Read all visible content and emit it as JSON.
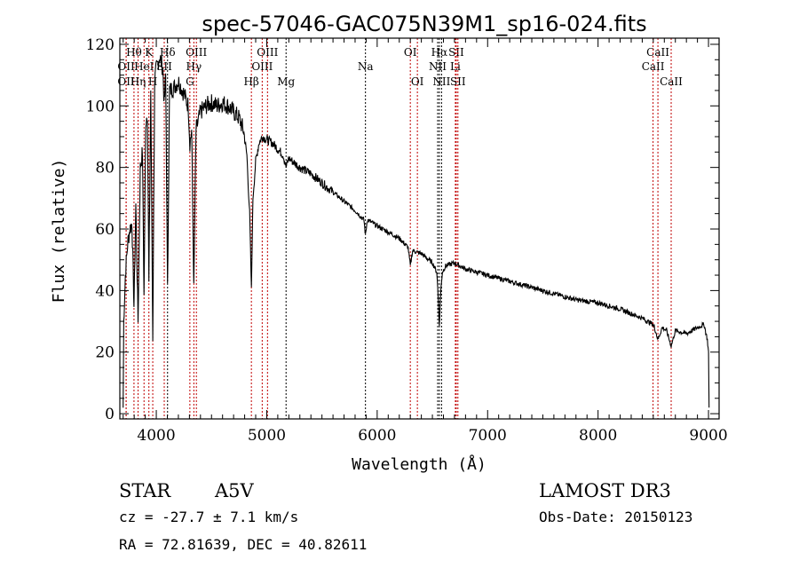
{
  "chart_data": {
    "type": "line",
    "title": "spec-57046-GAC075N39M1_sp16-024.fits",
    "xlabel": "Wavelength (Å)",
    "ylabel": "Flux (relative)",
    "xlim": [
      3670,
      9096
    ],
    "ylim": [
      -1.7,
      122
    ],
    "xticks": [
      4000,
      5000,
      6000,
      7000,
      8000,
      9000
    ],
    "yticks": [
      0,
      20,
      40,
      60,
      80,
      100,
      120
    ],
    "grid": false,
    "series": [
      {
        "name": "spectrum",
        "color": "#000000",
        "points": [
          [
            3700,
            2
          ],
          [
            3705,
            30
          ],
          [
            3720,
            45
          ],
          [
            3740,
            55
          ],
          [
            3760,
            60
          ],
          [
            3780,
            62
          ],
          [
            3798,
            35
          ],
          [
            3815,
            68
          ],
          [
            3835,
            30
          ],
          [
            3855,
            80
          ],
          [
            3875,
            85
          ],
          [
            3889,
            38
          ],
          [
            3905,
            95
          ],
          [
            3920,
            98
          ],
          [
            3933,
            42
          ],
          [
            3950,
            105
          ],
          [
            3968,
            25
          ],
          [
            3985,
            108
          ],
          [
            4000,
            112
          ],
          [
            4030,
            116
          ],
          [
            4060,
            112
          ],
          [
            4072,
            100
          ],
          [
            4085,
            110
          ],
          [
            4102,
            40
          ],
          [
            4120,
            105
          ],
          [
            4160,
            106
          ],
          [
            4200,
            108
          ],
          [
            4250,
            104
          ],
          [
            4290,
            100
          ],
          [
            4304,
            88
          ],
          [
            4320,
            92
          ],
          [
            4340,
            40
          ],
          [
            4360,
            92
          ],
          [
            4400,
            98
          ],
          [
            4450,
            100
          ],
          [
            4500,
            101
          ],
          [
            4550,
            100
          ],
          [
            4600,
            101
          ],
          [
            4650,
            100
          ],
          [
            4700,
            98
          ],
          [
            4750,
            96
          ],
          [
            4790,
            92
          ],
          [
            4820,
            84
          ],
          [
            4845,
            65
          ],
          [
            4861,
            40
          ],
          [
            4875,
            70
          ],
          [
            4900,
            82
          ],
          [
            4930,
            88
          ],
          [
            4960,
            90
          ],
          [
            5000,
            89
          ],
          [
            5050,
            88
          ],
          [
            5100,
            86
          ],
          [
            5150,
            84
          ],
          [
            5175,
            80
          ],
          [
            5200,
            83
          ],
          [
            5300,
            80
          ],
          [
            5400,
            78
          ],
          [
            5500,
            75
          ],
          [
            5600,
            72
          ],
          [
            5700,
            69
          ],
          [
            5800,
            66
          ],
          [
            5880,
            63
          ],
          [
            5894,
            58
          ],
          [
            5910,
            63
          ],
          [
            6000,
            61
          ],
          [
            6100,
            59
          ],
          [
            6200,
            57
          ],
          [
            6280,
            54
          ],
          [
            6300,
            48
          ],
          [
            6320,
            53
          ],
          [
            6400,
            52
          ],
          [
            6500,
            49
          ],
          [
            6540,
            46
          ],
          [
            6555,
            36
          ],
          [
            6563,
            28
          ],
          [
            6572,
            38
          ],
          [
            6590,
            46
          ],
          [
            6620,
            48
          ],
          [
            6700,
            49
          ],
          [
            6800,
            47
          ],
          [
            6900,
            46
          ],
          [
            7000,
            45
          ],
          [
            7200,
            43
          ],
          [
            7400,
            41
          ],
          [
            7600,
            39
          ],
          [
            7800,
            37
          ],
          [
            8000,
            36
          ],
          [
            8200,
            34
          ],
          [
            8400,
            31
          ],
          [
            8498,
            29
          ],
          [
            8520,
            27
          ],
          [
            8542,
            24
          ],
          [
            8580,
            28
          ],
          [
            8620,
            27
          ],
          [
            8662,
            22
          ],
          [
            8700,
            27
          ],
          [
            8800,
            26
          ],
          [
            8900,
            28
          ],
          [
            8960,
            29
          ],
          [
            8990,
            24
          ],
          [
            9000,
            20
          ],
          [
            9005,
            2
          ]
        ]
      }
    ],
    "lines": [
      {
        "label": "Hθ",
        "w": 3798,
        "row": 0,
        "color": "#c00000"
      },
      {
        "label": "K",
        "w": 3933,
        "row": 0,
        "color": "#c00000"
      },
      {
        "label": "Hδ",
        "w": 4102,
        "row": 0,
        "color": "#000000"
      },
      {
        "label": "OIII",
        "w": 4363,
        "row": 0,
        "color": "#c00000"
      },
      {
        "label": "OIII",
        "w": 5007,
        "row": 0,
        "color": "#c00000"
      },
      {
        "label": "OI",
        "w": 6300,
        "row": 0,
        "color": "#c00000"
      },
      {
        "label": "Hα",
        "w": 6563,
        "row": 0,
        "color": "#000000"
      },
      {
        "label": "SII",
        "w": 6716,
        "row": 0,
        "color": "#c00000"
      },
      {
        "label": "CaII",
        "w": 8542,
        "row": 0,
        "color": "#c00000"
      },
      {
        "label": "OII",
        "w": 3727,
        "row": 1,
        "color": "#c00000"
      },
      {
        "label": "HeI",
        "w": 3889,
        "row": 1,
        "color": "#c00000"
      },
      {
        "label": "SII",
        "w": 4072,
        "row": 1,
        "color": "#c00000"
      },
      {
        "label": "Hγ",
        "w": 4340,
        "row": 1,
        "color": "#c00000"
      },
      {
        "label": "OIII",
        "w": 4959,
        "row": 1,
        "color": "#c00000"
      },
      {
        "label": "Na",
        "w": 5894,
        "row": 1,
        "color": "#000000"
      },
      {
        "label": "NII",
        "w": 6548,
        "row": 1,
        "color": "#000000"
      },
      {
        "label": "Li",
        "w": 6708,
        "row": 1,
        "color": "#c00000"
      },
      {
        "label": "CaII",
        "w": 8498,
        "row": 1,
        "color": "#c00000"
      },
      {
        "label": "OII",
        "w": 3727,
        "row": 2,
        "color": "#c00000"
      },
      {
        "label": "Hη",
        "w": 3835,
        "row": 2,
        "color": "#c00000"
      },
      {
        "label": "H",
        "w": 3968,
        "row": 2,
        "color": "#c00000"
      },
      {
        "label": "G",
        "w": 4304,
        "row": 2,
        "color": "#c00000"
      },
      {
        "label": "Hβ",
        "w": 4861,
        "row": 2,
        "color": "#c00000"
      },
      {
        "label": "Mg",
        "w": 5175,
        "row": 2,
        "color": "#000000"
      },
      {
        "label": "OI",
        "w": 6364,
        "row": 2,
        "color": "#c00000"
      },
      {
        "label": "NII",
        "w": 6583,
        "row": 2,
        "color": "#000000"
      },
      {
        "label": "SII",
        "w": 6731,
        "row": 2,
        "color": "#c00000"
      },
      {
        "label": "CaII",
        "w": 8662,
        "row": 2,
        "color": "#c00000"
      }
    ]
  },
  "footer": {
    "class": "STAR",
    "subclass": "A5V",
    "survey": "LAMOST DR3",
    "cz": "cz = -27.7 ± 7.1 km/s",
    "obs_date": "Obs-Date: 20150123",
    "coords": "RA =  72.81639, DEC =  40.82611"
  }
}
